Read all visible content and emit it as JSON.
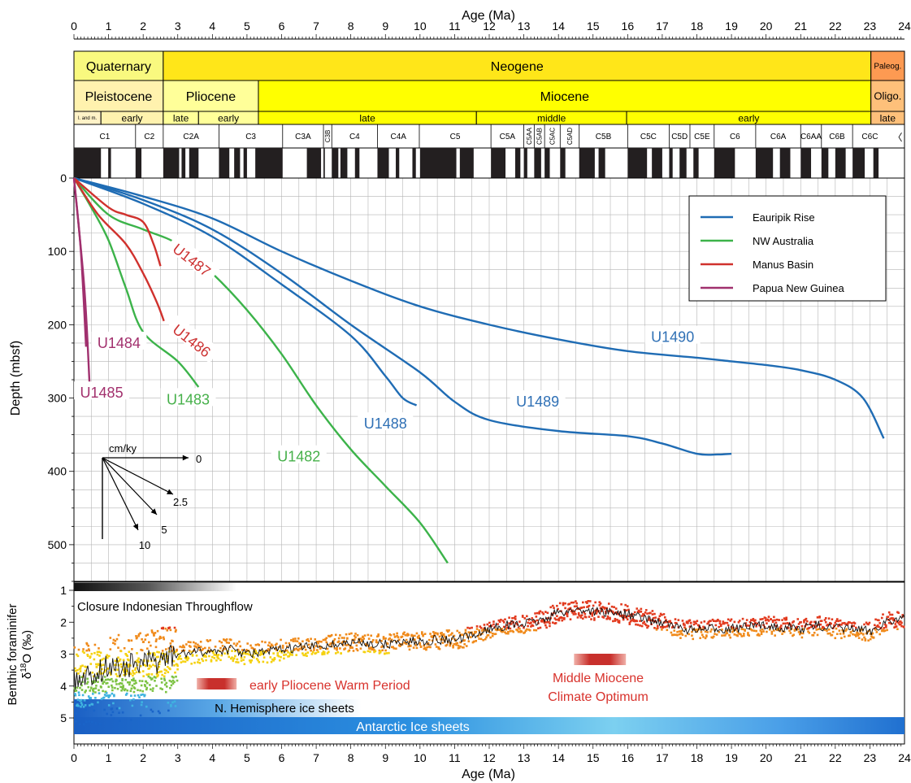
{
  "chart_data": [
    {
      "type": "line",
      "xlabel_top": "Age (Ma)",
      "ylabel": "Depth (mbsf)",
      "xlim": [
        0,
        24
      ],
      "ylim": [
        0,
        550
      ],
      "y_inverted": true,
      "x_ticks": [
        0,
        1,
        2,
        3,
        4,
        5,
        6,
        7,
        8,
        9,
        10,
        11,
        12,
        13,
        14,
        15,
        16,
        17,
        18,
        19,
        20,
        21,
        22,
        23,
        24
      ],
      "y_ticks": [
        0,
        100,
        200,
        300,
        400,
        500
      ],
      "grid": true,
      "legend_placement": "top-right",
      "legend": [
        {
          "label": "Eauripik Rise",
          "color": "#1f6cb4"
        },
        {
          "label": "NW Australia",
          "color": "#3cb34a"
        },
        {
          "label": "Manus Basin",
          "color": "#d0312d"
        },
        {
          "label": "Papua New Guinea",
          "color": "#a0306e"
        }
      ],
      "series": [
        {
          "name": "U1490",
          "group": 0,
          "points": [
            [
              0,
              0
            ],
            [
              2,
              25
            ],
            [
              4,
              55
            ],
            [
              6,
              100
            ],
            [
              8,
              140
            ],
            [
              10,
              175
            ],
            [
              12,
              200
            ],
            [
              14,
              220
            ],
            [
              16,
              236
            ],
            [
              18,
              245
            ],
            [
              19,
              250
            ],
            [
              20,
              255
            ],
            [
              21,
              262
            ],
            [
              22,
              275
            ],
            [
              22.8,
              300
            ],
            [
              23.4,
              355
            ]
          ]
        },
        {
          "name": "U1489",
          "group": 0,
          "points": [
            [
              0,
              0
            ],
            [
              2,
              30
            ],
            [
              4,
              70
            ],
            [
              6,
              130
            ],
            [
              8,
              200
            ],
            [
              10,
              265
            ],
            [
              11,
              305
            ],
            [
              12,
              330
            ],
            [
              14,
              345
            ],
            [
              16,
              352
            ],
            [
              17,
              362
            ],
            [
              18,
              376
            ],
            [
              18.6,
              377
            ],
            [
              19,
              376
            ]
          ]
        },
        {
          "name": "U1488",
          "group": 0,
          "points": [
            [
              0,
              0
            ],
            [
              2,
              35
            ],
            [
              4,
              80
            ],
            [
              6,
              145
            ],
            [
              8,
              215
            ],
            [
              9,
              270
            ],
            [
              9.5,
              300
            ],
            [
              9.9,
              310
            ]
          ]
        },
        {
          "name": "U1482",
          "group": 1,
          "points": [
            [
              0,
              0
            ],
            [
              1,
              50
            ],
            [
              2,
              70
            ],
            [
              3,
              90
            ],
            [
              4,
              130
            ],
            [
              5,
              180
            ],
            [
              6,
              240
            ],
            [
              7,
              310
            ],
            [
              8,
              370
            ],
            [
              9,
              420
            ],
            [
              10,
              470
            ],
            [
              10.8,
              525
            ]
          ]
        },
        {
          "name": "U1483",
          "group": 1,
          "points": [
            [
              0,
              0
            ],
            [
              0.5,
              40
            ],
            [
              1,
              85
            ],
            [
              1.5,
              150
            ],
            [
              2,
              210
            ],
            [
              3,
              250
            ],
            [
              3.6,
              285
            ]
          ]
        },
        {
          "name": "U1487",
          "group": 2,
          "points": [
            [
              0,
              0
            ],
            [
              1,
              40
            ],
            [
              1.5,
              50
            ],
            [
              2,
              60
            ],
            [
              2.3,
              90
            ],
            [
              2.5,
              120
            ]
          ]
        },
        {
          "name": "U1486",
          "group": 2,
          "points": [
            [
              0,
              0
            ],
            [
              0.7,
              50
            ],
            [
              1.5,
              90
            ],
            [
              2,
              130
            ],
            [
              2.4,
              170
            ],
            [
              2.6,
              195
            ]
          ]
        },
        {
          "name": "U1484",
          "group": 3,
          "points": [
            [
              0,
              0
            ],
            [
              0.2,
              100
            ],
            [
              0.35,
              230
            ]
          ]
        },
        {
          "name": "U1485",
          "group": 3,
          "points": [
            [
              0,
              0
            ],
            [
              0.3,
              150
            ],
            [
              0.45,
              280
            ]
          ]
        }
      ],
      "series_labels": [
        {
          "text": "U1490",
          "x": 17.3,
          "y": 217,
          "color": "#2f70b5"
        },
        {
          "text": "U1489",
          "x": 13.4,
          "y": 305,
          "color": "#2f70b5"
        },
        {
          "text": "U1488",
          "x": 9.0,
          "y": 335,
          "color": "#2f70b5"
        },
        {
          "text": "U1482",
          "x": 6.5,
          "y": 380,
          "color": "#46b04a"
        },
        {
          "text": "U1483",
          "x": 3.3,
          "y": 302,
          "color": "#46b04a"
        },
        {
          "text": "U1487",
          "x": 3.4,
          "y": 112,
          "color": "#cc3333",
          "rotate": 38
        },
        {
          "text": "U1486",
          "x": 3.4,
          "y": 222,
          "color": "#cc3333",
          "rotate": 38
        },
        {
          "text": "U1484",
          "x": 1.3,
          "y": 225,
          "color": "#a2306d"
        },
        {
          "text": "U1485",
          "x": 0.8,
          "y": 293,
          "color": "#a2306d"
        }
      ],
      "rate_inset": {
        "title": "cm/ky",
        "rays": [
          {
            "label": "0",
            "rate": 0
          },
          {
            "label": "2.5",
            "rate": 2.5
          },
          {
            "label": "5",
            "rate": 5
          },
          {
            "label": "10",
            "rate": 10
          }
        ]
      }
    },
    {
      "type": "scatter",
      "xlabel": "Age (Ma)",
      "ylabel_line1": "Benthic foraminifer",
      "ylabel_line2_prefix": "δ",
      "ylabel_line2_sup": "18",
      "ylabel_line2_suffix": "O (‰)",
      "xlim": [
        0,
        24
      ],
      "ylim": [
        1,
        5.3
      ],
      "y_inverted": true,
      "y_ticks": [
        1,
        2,
        3,
        4,
        5
      ],
      "x_ticks": [
        0,
        1,
        2,
        3,
        4,
        5,
        6,
        7,
        8,
        9,
        10,
        11,
        12,
        13,
        14,
        15,
        16,
        17,
        18,
        19,
        20,
        21,
        22,
        23,
        24
      ],
      "smoothed_curve": [
        [
          0,
          3.8
        ],
        [
          0.5,
          3.6
        ],
        [
          1,
          3.4
        ],
        [
          1.5,
          3.4
        ],
        [
          2,
          3.3
        ],
        [
          2.5,
          3.2
        ],
        [
          3,
          3.0
        ],
        [
          3.5,
          2.95
        ],
        [
          4,
          2.9
        ],
        [
          4.5,
          2.85
        ],
        [
          5,
          3.0
        ],
        [
          5.5,
          2.95
        ],
        [
          6,
          2.85
        ],
        [
          6.5,
          2.8
        ],
        [
          7,
          2.75
        ],
        [
          7.5,
          2.7
        ],
        [
          8,
          2.65
        ],
        [
          8.5,
          2.65
        ],
        [
          9,
          2.7
        ],
        [
          9.5,
          2.6
        ],
        [
          10,
          2.6
        ],
        [
          10.5,
          2.55
        ],
        [
          11,
          2.55
        ],
        [
          11.5,
          2.45
        ],
        [
          12,
          2.2
        ],
        [
          12.5,
          2.1
        ],
        [
          13,
          2.05
        ],
        [
          13.5,
          1.95
        ],
        [
          14,
          1.7
        ],
        [
          14.5,
          1.6
        ],
        [
          15,
          1.65
        ],
        [
          15.5,
          1.7
        ],
        [
          16,
          1.75
        ],
        [
          16.5,
          1.9
        ],
        [
          17,
          2.0
        ],
        [
          17.5,
          2.2
        ],
        [
          18,
          2.25
        ],
        [
          18.5,
          2.2
        ],
        [
          19,
          2.2
        ],
        [
          19.5,
          2.15
        ],
        [
          20,
          2.1
        ],
        [
          20.5,
          2.15
        ],
        [
          21,
          2.2
        ],
        [
          21.5,
          2.1
        ],
        [
          22,
          2.2
        ],
        [
          22.5,
          2.2
        ],
        [
          23,
          2.3
        ],
        [
          23.5,
          1.95
        ],
        [
          24,
          1.9
        ]
      ],
      "annotations": [
        {
          "text": "Closure Indonesian Throughflow"
        },
        {
          "text": "early Pliocene Warm Period"
        },
        {
          "text": "Middle Miocene"
        },
        {
          "text": "Climate Optimum"
        },
        {
          "text": "N. Hemisphere ice sheets"
        },
        {
          "text": "Antarctic Ice sheets"
        }
      ],
      "colors": {
        "red": "#e23a1e",
        "orange": "#f08a1a",
        "yellow": "#f5d10f",
        "green": "#7cc242",
        "cyan": "#3fb3e0",
        "blue": "#1a64c8",
        "warm_bar": "#c8302c"
      }
    }
  ],
  "timescale": {
    "periods": [
      {
        "label": "Quaternary",
        "from": 0,
        "to": 2.58,
        "color": "#f9f97f"
      },
      {
        "label": "Neogene",
        "from": 2.58,
        "to": 23.03,
        "color": "#ffe619"
      },
      {
        "label": "Paleog.",
        "from": 23.03,
        "to": 24,
        "color": "#fd9a52"
      }
    ],
    "epochs": [
      {
        "label": "Pleistocene",
        "from": 0,
        "to": 2.58,
        "color": "#fff2ae"
      },
      {
        "label": "Pliocene",
        "from": 2.58,
        "to": 5.33,
        "color": "#ffff99"
      },
      {
        "label": "Miocene",
        "from": 5.33,
        "to": 23.03,
        "color": "#ffff00"
      },
      {
        "label": "Oligo.",
        "from": 23.03,
        "to": 24,
        "color": "#fec07a"
      }
    ],
    "stages": [
      {
        "label": "l. and m.",
        "from": 0,
        "to": 0.78,
        "color": "#fff2c7"
      },
      {
        "label": "early",
        "from": 0.78,
        "to": 2.58,
        "color": "#fff2ae"
      },
      {
        "label": "late",
        "from": 2.58,
        "to": 3.6,
        "color": "#ffff99"
      },
      {
        "label": "early",
        "from": 3.6,
        "to": 5.33,
        "color": "#ffff99"
      },
      {
        "label": "late",
        "from": 5.33,
        "to": 11.63,
        "color": "#ffff00"
      },
      {
        "label": "middle",
        "from": 11.63,
        "to": 15.97,
        "color": "#ffff00"
      },
      {
        "label": "early",
        "from": 15.97,
        "to": 23.03,
        "color": "#ffff00"
      },
      {
        "label": "late",
        "from": 23.03,
        "to": 24,
        "color": "#fec07a"
      }
    ],
    "chrons": [
      {
        "label": "C1",
        "from": 0,
        "to": 1.78
      },
      {
        "label": "C2",
        "from": 1.78,
        "to": 2.58
      },
      {
        "label": "C2A",
        "from": 2.58,
        "to": 4.19
      },
      {
        "label": "C3",
        "from": 4.19,
        "to": 6.03
      },
      {
        "label": "C3A",
        "from": 6.03,
        "to": 7.21
      },
      {
        "label": "C3B",
        "from": 7.21,
        "to": 7.45,
        "vertical": true
      },
      {
        "label": "C4",
        "from": 7.45,
        "to": 8.77
      },
      {
        "label": "C4A",
        "from": 8.77,
        "to": 9.98
      },
      {
        "label": "C5",
        "from": 9.98,
        "to": 12.05
      },
      {
        "label": "C5A",
        "from": 12.05,
        "to": 13.0
      },
      {
        "label": "C5AA",
        "from": 13.0,
        "to": 13.3,
        "vertical": true
      },
      {
        "label": "C5AB",
        "from": 13.3,
        "to": 13.6,
        "vertical": true
      },
      {
        "label": "C5AC",
        "from": 13.6,
        "to": 14.05,
        "vertical": true
      },
      {
        "label": "C5AD",
        "from": 14.05,
        "to": 14.6,
        "vertical": true
      },
      {
        "label": "C5B",
        "from": 14.6,
        "to": 16.0
      },
      {
        "label": "C5C",
        "from": 16.0,
        "to": 17.2
      },
      {
        "label": "C5D",
        "from": 17.2,
        "to": 17.8
      },
      {
        "label": "C5E",
        "from": 17.8,
        "to": 18.5
      },
      {
        "label": "C6",
        "from": 18.5,
        "to": 19.7
      },
      {
        "label": "C6A",
        "from": 19.7,
        "to": 21.0
      },
      {
        "label": "C6AA",
        "from": 21.0,
        "to": 21.6
      },
      {
        "label": "C6B",
        "from": 21.6,
        "to": 22.5
      },
      {
        "label": "C6C",
        "from": 22.5,
        "to": 23.5
      }
    ],
    "normal_polarity_intervals": [
      [
        0,
        0.78
      ],
      [
        0.99,
        1.07
      ],
      [
        1.78,
        1.95
      ],
      [
        2.58,
        3.04
      ],
      [
        3.11,
        3.22
      ],
      [
        3.33,
        3.6
      ],
      [
        4.19,
        4.49
      ],
      [
        4.63,
        4.8
      ],
      [
        4.9,
        5.0
      ],
      [
        5.24,
        6.03
      ],
      [
        6.73,
        7.14
      ],
      [
        7.21,
        7.25
      ],
      [
        7.45,
        7.64
      ],
      [
        7.7,
        7.9
      ],
      [
        8.12,
        8.25
      ],
      [
        8.77,
        9.1
      ],
      [
        9.3,
        9.4
      ],
      [
        9.78,
        9.88
      ],
      [
        10.0,
        11.05
      ],
      [
        11.15,
        11.55
      ],
      [
        12.05,
        12.47
      ],
      [
        12.75,
        12.9
      ],
      [
        13.0,
        13.1
      ],
      [
        13.3,
        13.5
      ],
      [
        13.6,
        13.75
      ],
      [
        14.05,
        14.2
      ],
      [
        14.6,
        15.05
      ],
      [
        15.16,
        15.35
      ],
      [
        16.0,
        16.56
      ],
      [
        16.7,
        17.0
      ],
      [
        17.2,
        17.3
      ],
      [
        17.5,
        17.7
      ],
      [
        17.9,
        18.05
      ],
      [
        18.5,
        19.1
      ],
      [
        19.7,
        20.2
      ],
      [
        20.4,
        20.7
      ],
      [
        21.0,
        21.3
      ],
      [
        21.6,
        21.8
      ],
      [
        22.0,
        22.3
      ],
      [
        22.5,
        22.85
      ],
      [
        23.1,
        23.25
      ]
    ],
    "extra_chron_bar": "〈"
  }
}
